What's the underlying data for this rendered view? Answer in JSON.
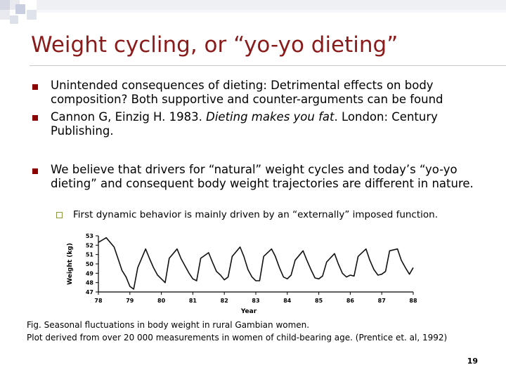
{
  "slide": {
    "title": "Weight cycling, or “yo-yo dieting”",
    "bullets": [
      {
        "text": "Unintended consequences of dieting: Detrimental effects on body composition? Both supportive and counter-arguments can be found"
      },
      {
        "pre": "Cannon G, Einzig H. 1983. ",
        "italic": "Dieting makes you fat",
        "post": ". London: Century Publishing."
      },
      {
        "text": "We believe that drivers for “natural” weight cycles and today’s “yo-yo dieting” and consequent body weight trajectories are different in nature."
      }
    ],
    "sub_bullet": "First dynamic behavior is mainly driven by an “externally” imposed function.",
    "caption_line1": "Fig. Seasonal fluctuations in body weight in rural Gambian women.",
    "caption_line2": "Plot derived from over 20 000 measurements in women of child-bearing age. (Prentice et. al, 1992)",
    "page_number": "19"
  },
  "chart_data": {
    "type": "line",
    "ylabel": "Weight (kg)",
    "xlabel": "Year",
    "y_ticks": [
      47,
      48,
      49,
      50,
      51,
      52,
      53
    ],
    "x_ticks": [
      "78",
      "79",
      "80",
      "81",
      "82",
      "83",
      "84",
      "85",
      "86",
      "87",
      "88"
    ],
    "xlim": [
      78,
      88
    ],
    "ylim": [
      47,
      53
    ],
    "series": [
      {
        "x": [
          78.0,
          78.25,
          78.5,
          78.62,
          78.75,
          78.88,
          79.0,
          79.12,
          79.25,
          79.5,
          79.62,
          79.75,
          79.88,
          80.0,
          80.12,
          80.25,
          80.5,
          80.62,
          80.75,
          80.88,
          81.0,
          81.12,
          81.25,
          81.5,
          81.62,
          81.75,
          81.88,
          82.0,
          82.12,
          82.25,
          82.5,
          82.62,
          82.75,
          82.88,
          83.0,
          83.12,
          83.25,
          83.5,
          83.62,
          83.75,
          83.88,
          84.0,
          84.12,
          84.25,
          84.5,
          84.62,
          84.75,
          84.88,
          85.0,
          85.12,
          85.25,
          85.5,
          85.62,
          85.75,
          85.88,
          86.0,
          86.12,
          86.25,
          86.5,
          86.62,
          86.75,
          86.88,
          87.0,
          87.12,
          87.25,
          87.5,
          87.62,
          87.75,
          87.88,
          88.0
        ],
        "values": [
          52.3,
          52.8,
          51.8,
          50.6,
          49.3,
          48.6,
          47.6,
          47.3,
          49.6,
          51.6,
          50.6,
          49.6,
          48.8,
          48.4,
          48.0,
          50.6,
          51.6,
          50.6,
          49.8,
          49.0,
          48.4,
          48.2,
          50.6,
          51.2,
          50.2,
          49.2,
          48.8,
          48.3,
          48.6,
          50.8,
          51.8,
          50.8,
          49.4,
          48.6,
          48.2,
          48.2,
          50.8,
          51.6,
          50.8,
          49.6,
          48.6,
          48.4,
          48.8,
          50.4,
          51.4,
          50.4,
          49.4,
          48.5,
          48.4,
          48.7,
          50.2,
          51.1,
          50.0,
          49.0,
          48.6,
          48.8,
          48.7,
          50.8,
          51.6,
          50.4,
          49.4,
          48.8,
          48.9,
          49.2,
          51.4,
          51.6,
          50.4,
          49.6,
          48.9,
          49.6
        ]
      }
    ]
  }
}
